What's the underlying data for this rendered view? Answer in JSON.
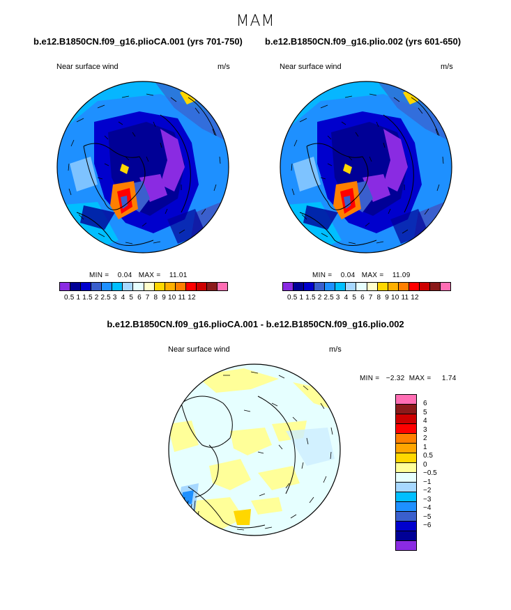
{
  "season": "MAM",
  "panels": [
    {
      "title": "b.e12.B1850CN.f09_g16.plioCA.001 (yrs 701-750)",
      "left_label": "Near surface wind",
      "right_label": "m/s",
      "min_text": "MIN =",
      "min_value": "0.04",
      "max_text": "MAX =",
      "max_value": "11.01"
    },
    {
      "title": "b.e12.B1850CN.f09_g16.plio.002 (yrs 601-650)",
      "left_label": "Near surface wind",
      "right_label": "m/s",
      "min_text": "MIN =",
      "min_value": "0.04",
      "max_text": "MAX =",
      "max_value": "11.09"
    },
    {
      "title": "b.e12.B1850CN.f09_g16.plioCA.001 - b.e12.B1850CN.f09_g16.plio.002",
      "left_label": "Near surface wind",
      "right_label": "m/s",
      "min_text": "MIN =",
      "min_value": "−2.32",
      "max_text": "MAX =",
      "max_value": "1.74"
    }
  ],
  "colorbar_abs": {
    "tick_text": "0.5 1 1.5 2 2.5 3  4  5  6  7  8  9 10 11 12",
    "colors": [
      "#8a2be2",
      "#000096",
      "#0000cd",
      "#3a5fcd",
      "#1e90ff",
      "#00bfff",
      "#a7d8ff",
      "#e6ffff",
      "#ffffcc",
      "#ffd700",
      "#ffb000",
      "#ff7f00",
      "#ff0000",
      "#cd0000",
      "#8b1a1a",
      "#ff6eb4"
    ]
  },
  "colorbar_diff": {
    "labels": [
      "6",
      "5",
      "4",
      "3",
      "2",
      "1",
      "0.5",
      "0",
      "−0.5",
      "−1",
      "−2",
      "−3",
      "−4",
      "−5",
      "−6"
    ],
    "colors": [
      "#ff6eb4",
      "#8b1a1a",
      "#cd0000",
      "#ff0000",
      "#ff7f00",
      "#ffa500",
      "#ffd700",
      "#ffff99",
      "#e6ffff",
      "#a7d8ff",
      "#00bfff",
      "#1e90ff",
      "#3a5fcd",
      "#0000cd",
      "#000096",
      "#8a2be2"
    ]
  },
  "chart_data": [
    {
      "type": "heatmap",
      "title": "b.e12.B1850CN.f09_g16.plioCA.001 (yrs 701-750)",
      "variable": "Near surface wind",
      "units": "m/s",
      "projection": "polar stereographic",
      "overlay": "wind vectors",
      "min": 0.04,
      "max": 11.01,
      "levels": [
        0.5,
        1,
        1.5,
        2,
        2.5,
        3,
        4,
        5,
        6,
        7,
        8,
        9,
        10,
        11,
        12
      ]
    },
    {
      "type": "heatmap",
      "title": "b.e12.B1850CN.f09_g16.plio.002 (yrs 601-650)",
      "variable": "Near surface wind",
      "units": "m/s",
      "projection": "polar stereographic",
      "overlay": "wind vectors",
      "min": 0.04,
      "max": 11.09,
      "levels": [
        0.5,
        1,
        1.5,
        2,
        2.5,
        3,
        4,
        5,
        6,
        7,
        8,
        9,
        10,
        11,
        12
      ]
    },
    {
      "type": "heatmap",
      "title": "b.e12.B1850CN.f09_g16.plioCA.001 - b.e12.B1850CN.f09_g16.plio.002",
      "variable": "Near surface wind",
      "units": "m/s",
      "projection": "polar stereographic",
      "overlay": "wind vectors",
      "min": -2.32,
      "max": 1.74,
      "levels": [
        -6,
        -5,
        -4,
        -3,
        -2,
        -1,
        -0.5,
        0,
        0.5,
        1,
        2,
        3,
        4,
        5,
        6
      ]
    }
  ]
}
